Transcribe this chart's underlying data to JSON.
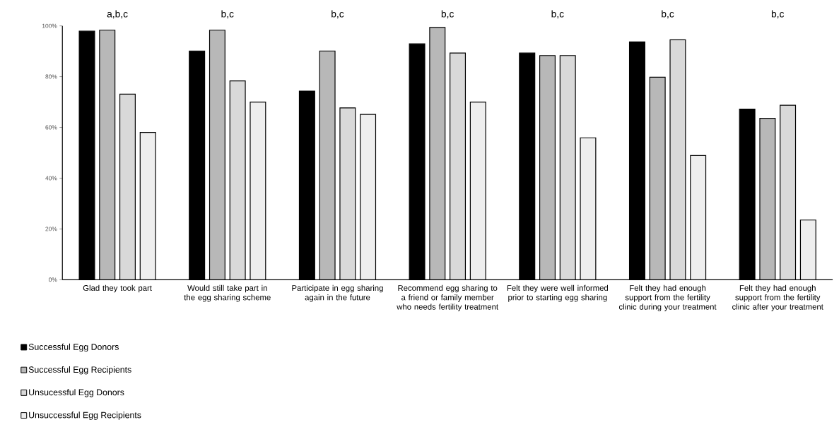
{
  "chart_data": {
    "type": "bar",
    "categories": [
      "Glad they took part",
      "Would still take part in the egg sharing scheme",
      "Participate in egg sharing again in the future",
      "Recommend egg sharing to a friend or family member who needs fertility treatment",
      "Felt they were well informed prior to starting egg sharing",
      "Felt they had enough support from the fertility clinic during your treatment",
      "Felt they had enough support from the fertility clinic after your treatment"
    ],
    "series": [
      {
        "name": "Successful Egg Donors",
        "color": "#000000",
        "values": [
          97.9,
          90.1,
          74.3,
          92.9,
          89.3,
          93.7,
          67.2
        ]
      },
      {
        "name": "Successful Egg Recipients",
        "color": "#b8b8b8",
        "values": [
          98.3,
          98.3,
          90.1,
          99.4,
          88.3,
          79.8,
          63.6
        ]
      },
      {
        "name": "Unsucessful Egg Donors",
        "color": "#d9d9d9",
        "values": [
          73.1,
          78.3,
          67.7,
          89.3,
          88.3,
          94.5,
          68.7
        ]
      },
      {
        "name": "Unsuccessful Egg Recipients",
        "color": "#eeeeee",
        "values": [
          58.0,
          70.0,
          65.1,
          70.0,
          55.9,
          48.9,
          23.5
        ]
      }
    ],
    "ylim": [
      0,
      100
    ],
    "yticks": [
      {
        "value": 0,
        "label": "0%"
      },
      {
        "value": 20,
        "label": "20%"
      },
      {
        "value": 40,
        "label": "40%"
      },
      {
        "value": 60,
        "label": "60%"
      },
      {
        "value": 80,
        "label": "80%"
      },
      {
        "value": 100,
        "label": "100%"
      }
    ],
    "annotations": [
      "a,b,c",
      "b,c",
      "b,c",
      "b,c",
      "b,c",
      "b,c",
      "b,c"
    ],
    "legend": "bottom left",
    "grid": false
  }
}
